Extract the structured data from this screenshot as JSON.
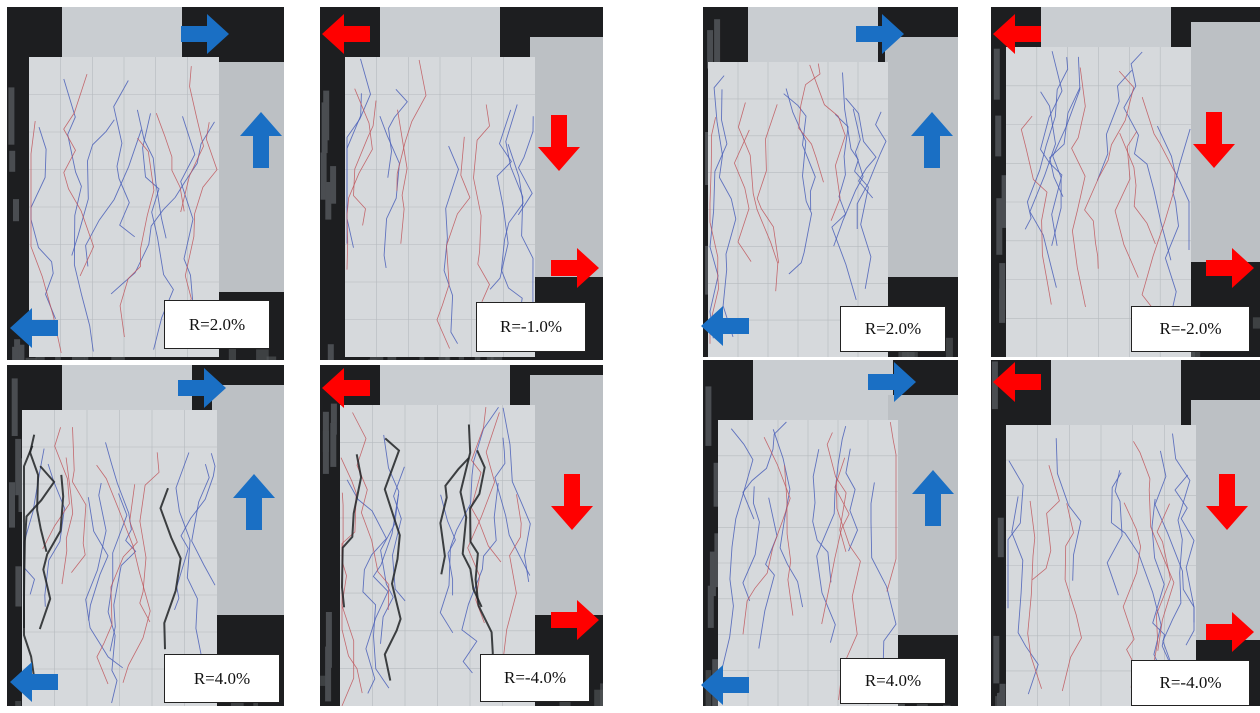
{
  "figure": {
    "panels": [
      {
        "label": "R=2.0%"
      },
      {
        "label": "R=-1.0%"
      },
      {
        "label": "R=2.0%"
      },
      {
        "label": "R=-2.0%"
      },
      {
        "label": "R=4.0%"
      },
      {
        "label": "R=-4.0%"
      },
      {
        "label": "R=4.0%"
      },
      {
        "label": "R=-4.0%"
      }
    ],
    "colors": {
      "positive_arrow": "#1a6fc4",
      "negative_arrow": "#ff0000",
      "wall": "#d6d9dc",
      "background": "#1d1e20"
    }
  }
}
